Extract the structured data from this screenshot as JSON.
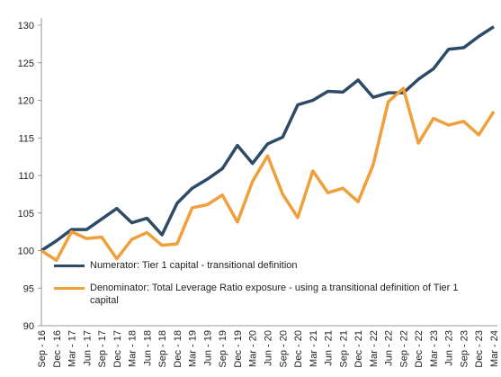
{
  "chart_data": {
    "type": "line",
    "categories": [
      "Sep - 16",
      "Dec - 16",
      "Mar - 17",
      "Jun - 17",
      "Sep - 17",
      "Dec - 17",
      "Mar - 18",
      "Jun - 18",
      "Sep - 18",
      "Dec - 18",
      "Mar - 19",
      "Jun - 19",
      "Sep - 19",
      "Dec - 19",
      "Mar - 20",
      "Jun - 20",
      "Sep - 20",
      "Dec - 20",
      "Mar - 21",
      "Jun - 21",
      "Sep - 21",
      "Dec - 21",
      "Mar - 22",
      "Jun - 22",
      "Sep - 22",
      "Dec - 22",
      "Mar - 23",
      "Jun - 23",
      "Sep - 23",
      "Dec - 23",
      "Mar - 24"
    ],
    "series": [
      {
        "name": "Numerator: Tier 1 capital - transitional definition",
        "color": "#2d4a66",
        "values": [
          100,
          101.3,
          102.8,
          102.8,
          104.2,
          105.6,
          103.7,
          104.3,
          102.1,
          106.3,
          108.3,
          109.5,
          110.9,
          114,
          111.6,
          114.2,
          115.1,
          119.4,
          120,
          121.2,
          121.1,
          122.7,
          120.4,
          121,
          121,
          122.8,
          124.2,
          126.8,
          127,
          128.5,
          129.8
        ]
      },
      {
        "name": "Denominator: Total Leverage Ratio exposure - using a transitional definition of Tier 1 capital",
        "color": "#f0a03a",
        "values": [
          100,
          98.7,
          102.5,
          101.6,
          101.8,
          98.9,
          101.5,
          102.4,
          100.7,
          100.9,
          105.7,
          106.1,
          107.4,
          103.8,
          109.2,
          112.6,
          107.5,
          104.4,
          110.6,
          107.7,
          108.3,
          106.5,
          111.4,
          119.8,
          121.6,
          114.3,
          117.6,
          116.7,
          117.2,
          115.4,
          118.5
        ]
      }
    ],
    "ylim": [
      90,
      130
    ],
    "yticks": [
      90,
      95,
      100,
      105,
      110,
      115,
      120,
      125,
      130
    ],
    "grid": false
  }
}
